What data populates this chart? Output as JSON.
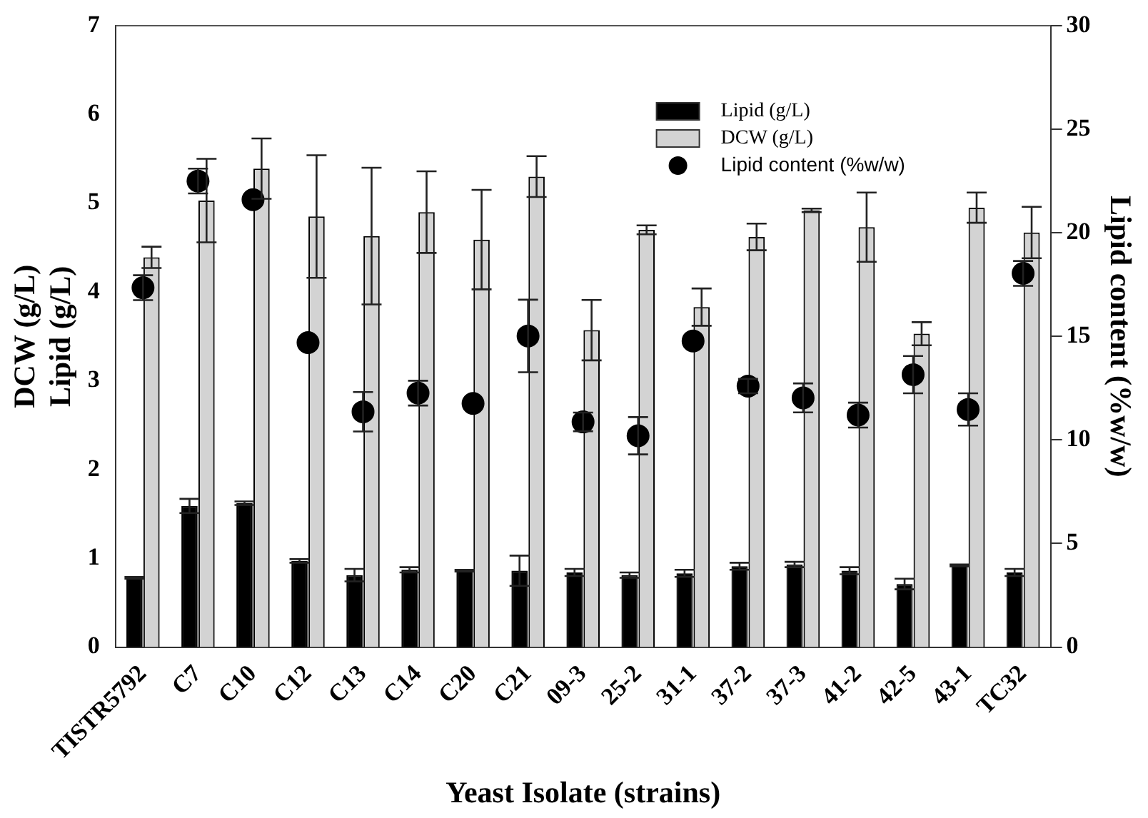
{
  "chart_data": {
    "type": "bar",
    "xlabel": "Yeast Isolate (strains)",
    "ylabel": "DCW (g/L)\nLipid (g/L)",
    "y2label": "Lipid content (%w/w)",
    "categories": [
      "TISTR5792",
      "C7",
      "C10",
      "C12",
      "C13",
      "C14",
      "C20",
      "C21",
      "09-3",
      "25-2",
      "31-1",
      "37-2",
      "37-3",
      "41-2",
      "42-5",
      "43-1",
      "TC32"
    ],
    "series": [
      {
        "name": "Lipid (g/L)",
        "color": "#000000",
        "values": [
          0.78,
          1.59,
          1.62,
          0.97,
          0.81,
          0.87,
          0.86,
          0.86,
          0.84,
          0.81,
          0.83,
          0.91,
          0.93,
          0.86,
          0.71,
          0.92,
          0.84
        ],
        "errors": [
          0.01,
          0.08,
          0.02,
          0.02,
          0.07,
          0.03,
          0.01,
          0.17,
          0.04,
          0.03,
          0.04,
          0.04,
          0.03,
          0.04,
          0.06,
          0.01,
          0.04
        ]
      },
      {
        "name": "DCW (g/L)",
        "color": "#d3d3d3",
        "values": [
          4.39,
          5.03,
          5.39,
          4.85,
          4.63,
          4.9,
          4.59,
          5.3,
          3.57,
          4.7,
          3.83,
          4.62,
          4.92,
          4.73,
          3.53,
          4.95,
          4.67
        ],
        "errors": [
          0.12,
          0.47,
          0.34,
          0.69,
          0.77,
          0.46,
          0.56,
          0.23,
          0.34,
          0.05,
          0.21,
          0.15,
          0.02,
          0.39,
          0.13,
          0.17,
          0.29
        ]
      },
      {
        "name": "Lipid content (%w/w)",
        "type": "scatter",
        "axis": "y2",
        "color": "#000000",
        "x": [
          "TISTR5792",
          "C7",
          "C10",
          "C12",
          "C13",
          "C14",
          "C20",
          "C21",
          "09-3",
          "25-2",
          "31-1",
          "37-2",
          "37-3",
          "41-2",
          "42-5",
          "43-1",
          "TC32"
        ],
        "values": [
          17.35,
          22.5,
          21.6,
          14.7,
          11.36,
          12.26,
          11.76,
          15.02,
          10.87,
          10.2,
          14.78,
          12.6,
          12.03,
          11.2,
          13.15,
          11.47,
          18.04
        ],
        "errors": [
          0.6,
          0.6,
          null,
          null,
          0.95,
          0.6,
          null,
          1.75,
          0.45,
          0.9,
          null,
          0.35,
          0.7,
          0.6,
          0.9,
          0.78,
          0.6
        ]
      }
    ],
    "ylim": [
      0,
      7
    ],
    "yticks": [
      0,
      1,
      2,
      3,
      4,
      5,
      6,
      7
    ],
    "y2lim": [
      0,
      30
    ],
    "y2ticks": [
      0,
      5,
      10,
      15,
      20,
      25,
      30
    ],
    "grid": false,
    "legend": "top right",
    "marker": "circle"
  }
}
